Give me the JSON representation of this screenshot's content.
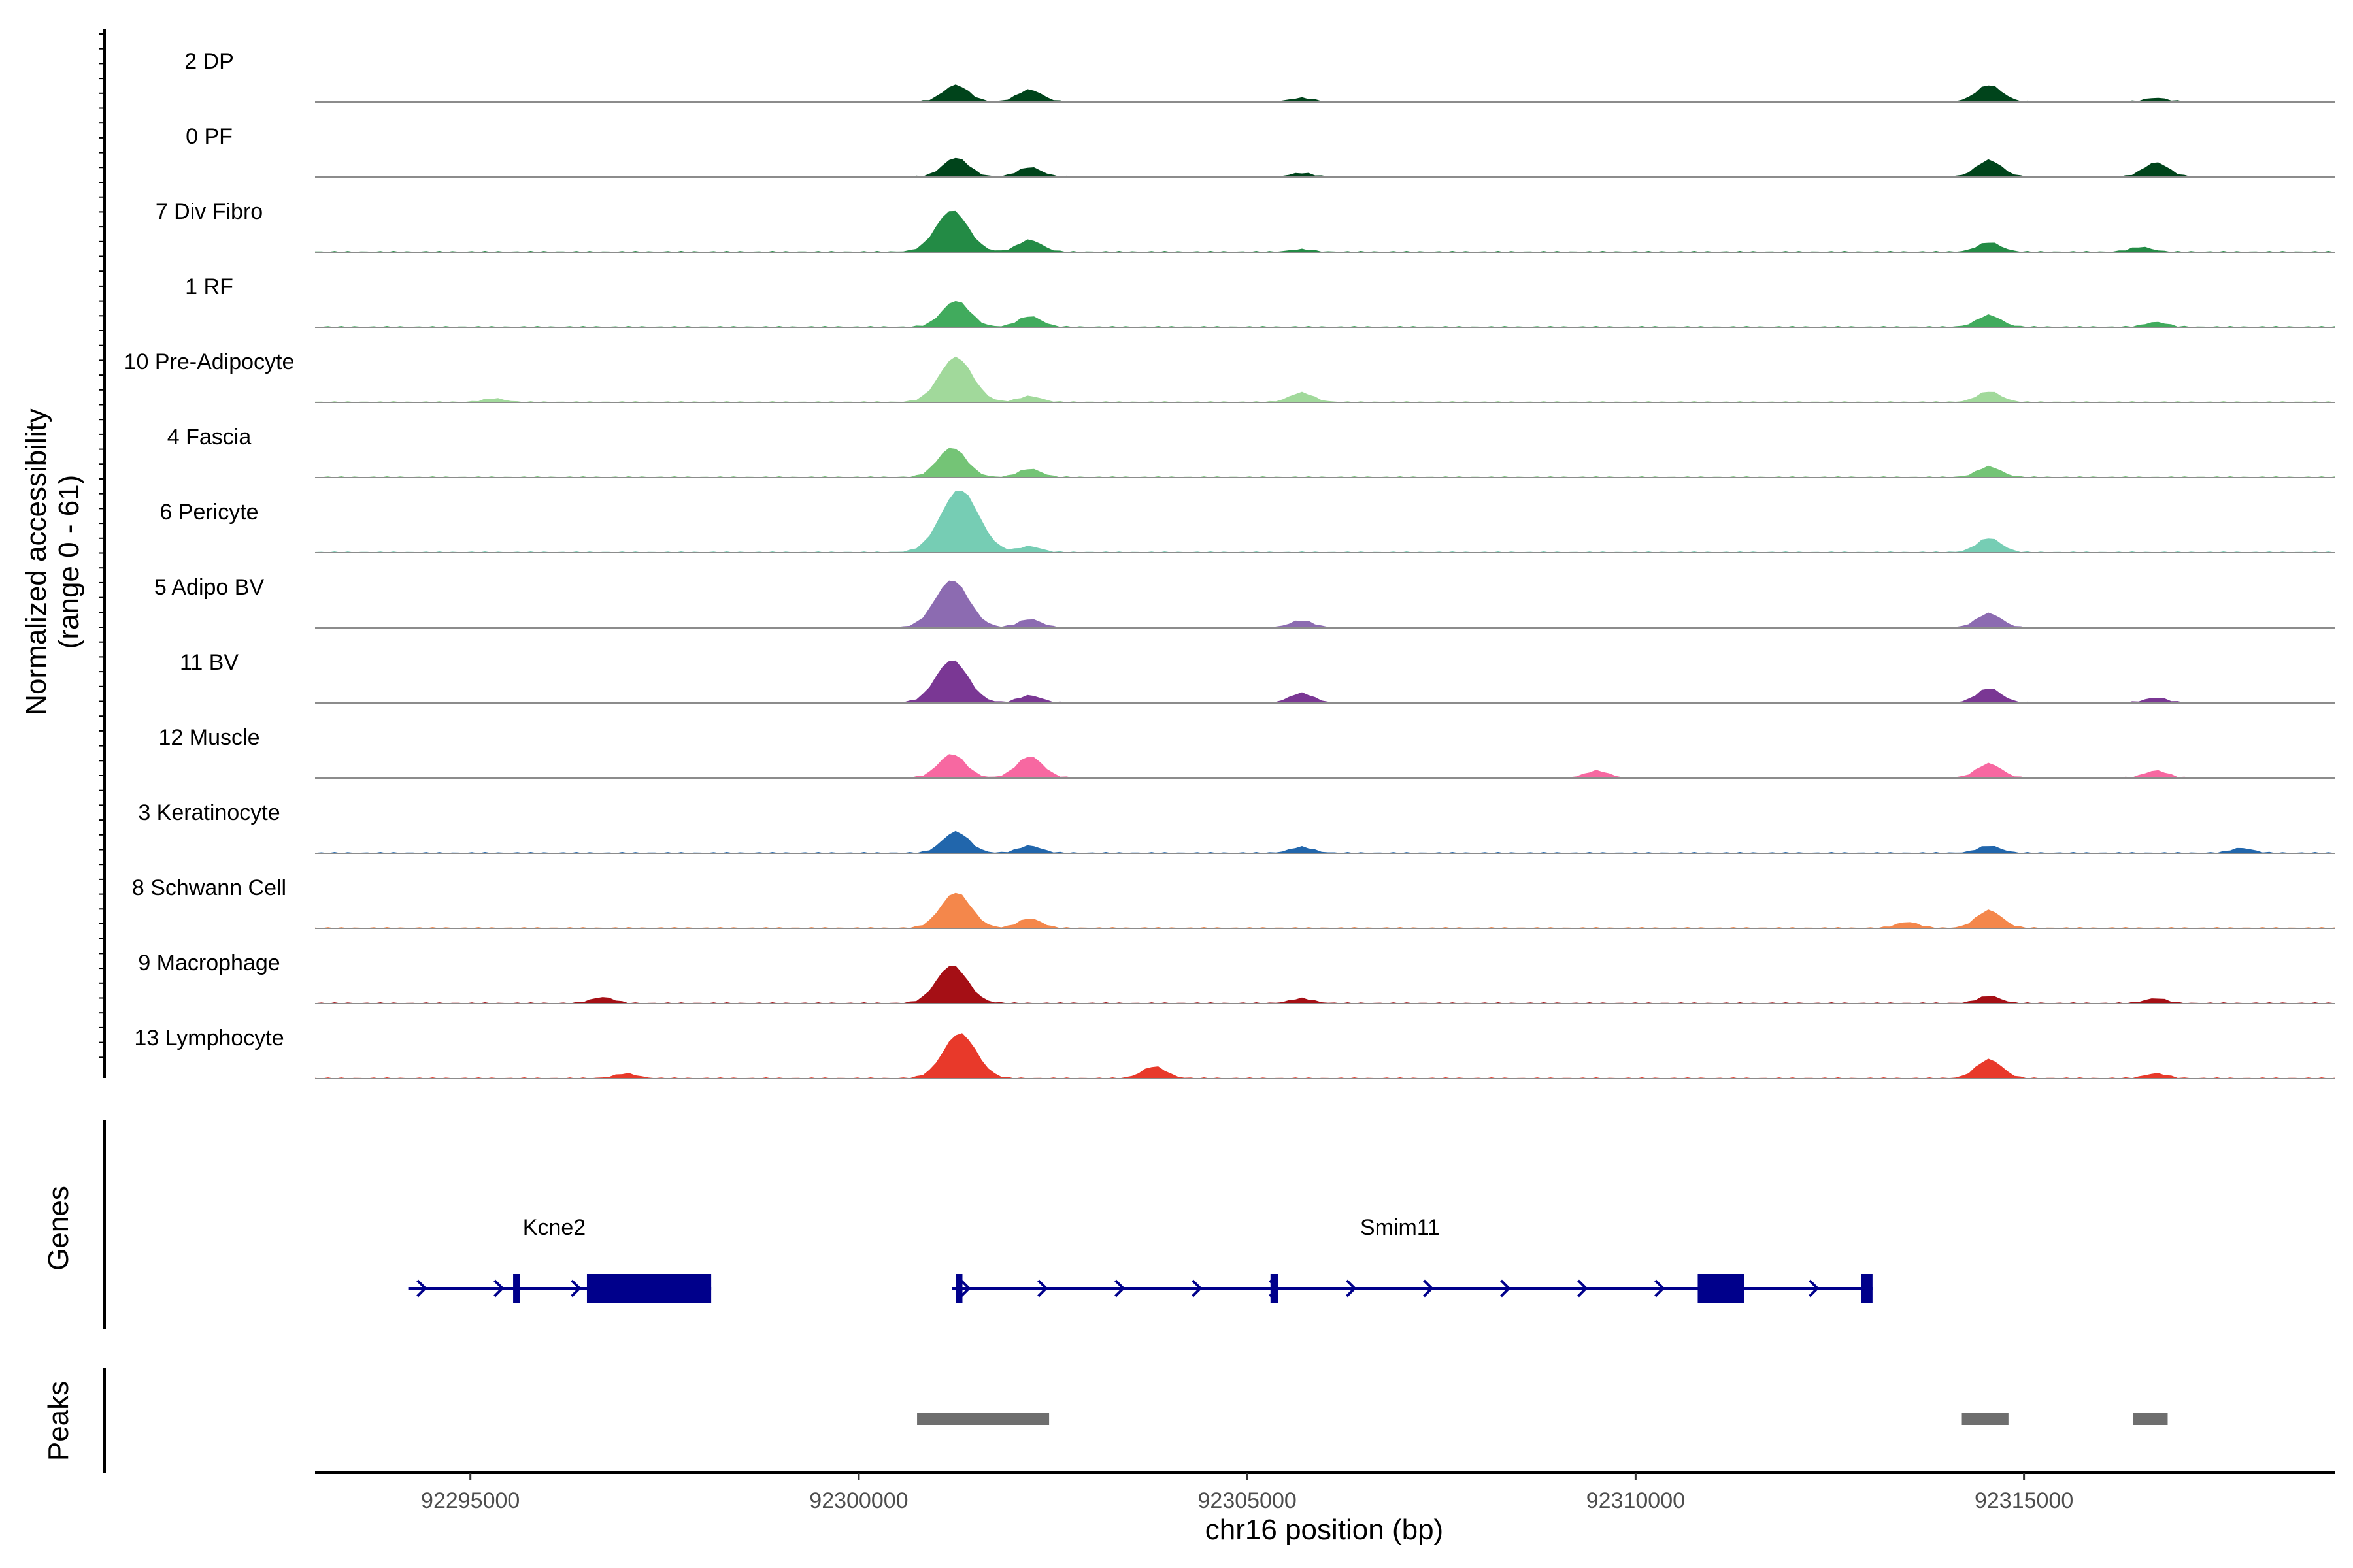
{
  "chart_data": {
    "type": "area",
    "title": "",
    "ylabel_line1": "Normalized accessibility",
    "ylabel_line2": "(range 0 - 61)",
    "yrange": [
      0,
      61
    ],
    "xlabel": "chr16 position (bp)",
    "xlim": [
      92293000,
      92319000
    ],
    "xticks": [
      92295000,
      92300000,
      92305000,
      92310000,
      92315000
    ],
    "xtick_labels": [
      "92295000",
      "92300000",
      "92305000",
      "92310000",
      "92315000"
    ],
    "series": [
      {
        "name": "2 DP",
        "color": "#00441b",
        "peaks": [
          [
            92301250,
            14
          ],
          [
            92302200,
            10
          ],
          [
            92305700,
            3
          ],
          [
            92314550,
            14
          ],
          [
            92316700,
            3
          ]
        ]
      },
      {
        "name": "0 PF",
        "color": "#00441b",
        "peaks": [
          [
            92301250,
            16
          ],
          [
            92302200,
            8
          ],
          [
            92305700,
            3
          ],
          [
            92314550,
            14
          ],
          [
            92316700,
            12
          ]
        ]
      },
      {
        "name": "7 Div Fibro",
        "color": "#238b45",
        "peaks": [
          [
            92301200,
            35
          ],
          [
            92302200,
            10
          ],
          [
            92305700,
            2
          ],
          [
            92314550,
            8
          ],
          [
            92316500,
            4
          ]
        ]
      },
      {
        "name": "1 RF",
        "color": "#41ab5d",
        "peaks": [
          [
            92301250,
            22
          ],
          [
            92302200,
            9
          ],
          [
            92314550,
            10
          ],
          [
            92316700,
            4
          ]
        ]
      },
      {
        "name": "10 Pre-Adipocyte",
        "color": "#a1d99b",
        "peaks": [
          [
            92301250,
            38
          ],
          [
            92302200,
            5
          ],
          [
            92305700,
            8
          ],
          [
            92314550,
            9
          ],
          [
            92295300,
            3
          ]
        ]
      },
      {
        "name": "4 Fascia",
        "color": "#74c476",
        "peaks": [
          [
            92301200,
            25
          ],
          [
            92302200,
            7
          ],
          [
            92314550,
            9
          ]
        ]
      },
      {
        "name": "6 Pericyte",
        "color": "#76cdb4",
        "peaks": [
          [
            92301300,
            53
          ],
          [
            92302200,
            5
          ],
          [
            92314550,
            12
          ]
        ]
      },
      {
        "name": "5 Adipo BV",
        "color": "#8c6bb1",
        "peaks": [
          [
            92301200,
            40
          ],
          [
            92302200,
            7
          ],
          [
            92305700,
            6
          ],
          [
            92314550,
            12
          ]
        ]
      },
      {
        "name": "11 BV",
        "color": "#7a3794",
        "peaks": [
          [
            92301200,
            36
          ],
          [
            92302200,
            6
          ],
          [
            92305700,
            8
          ],
          [
            92314550,
            12
          ],
          [
            92316700,
            4
          ]
        ]
      },
      {
        "name": "12 Muscle",
        "color": "#f768a1",
        "peaks": [
          [
            92301200,
            20
          ],
          [
            92302200,
            18
          ],
          [
            92309500,
            6
          ],
          [
            92314550,
            12
          ],
          [
            92316700,
            6
          ]
        ]
      },
      {
        "name": "3 Keratinocyte",
        "color": "#2166ac",
        "peaks": [
          [
            92301250,
            18
          ],
          [
            92302200,
            6
          ],
          [
            92305700,
            5
          ],
          [
            92314550,
            6
          ],
          [
            92317800,
            4
          ]
        ]
      },
      {
        "name": "8 Schwann Cell",
        "color": "#f4874b",
        "peaks": [
          [
            92301250,
            30
          ],
          [
            92302200,
            8
          ],
          [
            92314550,
            15
          ],
          [
            92313500,
            5
          ]
        ]
      },
      {
        "name": "9 Macrophage",
        "color": "#a50f15",
        "peaks": [
          [
            92301200,
            32
          ],
          [
            92296700,
            5
          ],
          [
            92305700,
            4
          ],
          [
            92314550,
            6
          ],
          [
            92316700,
            4
          ]
        ]
      },
      {
        "name": "13 Lymphocyte",
        "color": "#e8392a",
        "peaks": [
          [
            92301300,
            38
          ],
          [
            92303800,
            10
          ],
          [
            92297000,
            4
          ],
          [
            92314550,
            16
          ],
          [
            92316700,
            4
          ]
        ]
      }
    ],
    "genes": [
      {
        "name": "Kcne2",
        "start": 92294200,
        "end": 92298100,
        "strand": "+",
        "exons": [
          [
            92295550,
            92295620
          ],
          [
            92296500,
            92298100
          ]
        ]
      },
      {
        "name": "Smim11",
        "start": 92301200,
        "end": 92313050,
        "strand": "+",
        "exons": [
          [
            92301250,
            92301320
          ],
          [
            92305300,
            92305400
          ],
          [
            92310800,
            92311400
          ],
          [
            92312900,
            92313050
          ]
        ]
      }
    ],
    "peaks_track": [
      [
        92300750,
        92302450
      ],
      [
        92314200,
        92314800
      ],
      [
        92316400,
        92316850
      ]
    ],
    "gene_track_label": "Genes",
    "peaks_track_label": "Peaks"
  }
}
